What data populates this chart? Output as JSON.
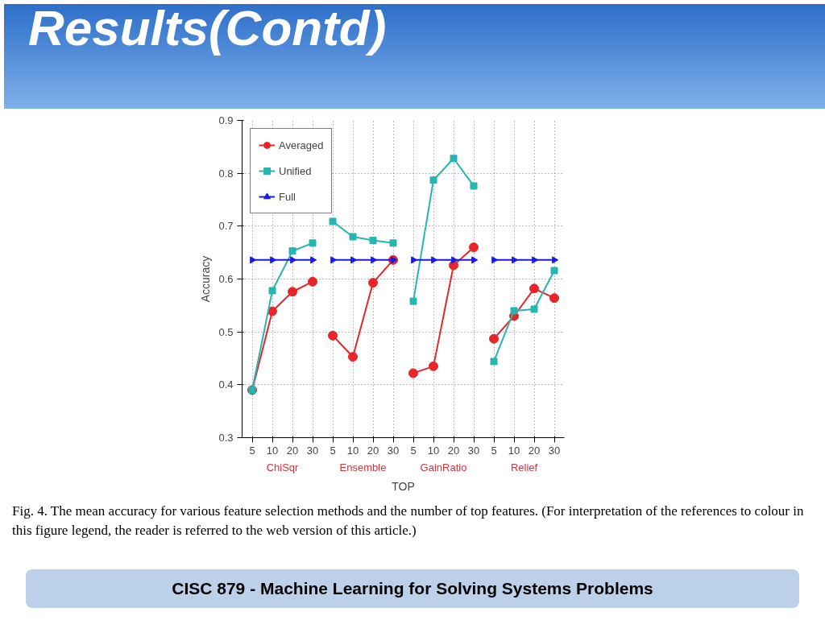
{
  "chart_data": {
    "type": "line",
    "title": "Results(Contd)",
    "xlabel": "TOP",
    "ylabel": "Accuracy",
    "annotations": [
      "ChiSqr",
      "Ensemble",
      "GainRatio",
      "Relief",
      "Fig. 4.  The mean accuracy for various feature selection methods and the number of top features. (For interpretation of the references to colour in this figure legend, the reader is referred to the web version of this article.)",
      "CISC 879 - Machine Learning for Solving Systems Problems"
    ],
    "categories": [
      "5",
      "10",
      "20",
      "30",
      "5",
      "10",
      "20",
      "30",
      "5",
      "10",
      "20",
      "30",
      "5",
      "10",
      "20",
      "30"
    ],
    "ylim": [
      0.3,
      0.9
    ],
    "yticks": [
      0.3,
      0.4,
      0.5,
      0.6,
      0.7,
      0.8,
      0.9
    ],
    "grid": true,
    "legend": "top left",
    "line_style": "solid",
    "series": [
      {
        "name": "Averaged",
        "color": "#e8262a",
        "marker": "circle",
        "values": [
          0.39,
          0.539,
          0.576,
          0.595,
          null,
          null,
          null,
          null,
          null,
          null,
          null,
          null,
          null,
          null,
          null,
          null
        ]
      },
      {
        "name": "Unified",
        "color": "#26b5b0",
        "marker": "square",
        "values": [
          0.39,
          0.578,
          0.653,
          0.668,
          null,
          null,
          null,
          null,
          null,
          null,
          null,
          null,
          null,
          null,
          null,
          null
        ]
      },
      {
        "name": "Full",
        "color": "#1a1ae6",
        "marker": "triangle",
        "values": [
          0.636,
          0.636,
          0.636,
          0.636,
          null,
          null,
          null,
          null,
          null,
          null,
          null,
          null,
          null,
          null,
          null,
          null
        ]
      },
      {
        "color": "#e8262a",
        "marker": "circle",
        "values": [
          null,
          null,
          null,
          null,
          0.493,
          0.453,
          0.593,
          0.636,
          null,
          null,
          null,
          null,
          null,
          null,
          null,
          null
        ]
      },
      {
        "color": "#26b5b0",
        "marker": "square",
        "values": [
          null,
          null,
          null,
          null,
          0.709,
          0.68,
          0.673,
          0.668,
          null,
          null,
          null,
          null,
          null,
          null,
          null,
          null
        ]
      },
      {
        "color": "#1a1ae6",
        "marker": "triangle",
        "values": [
          null,
          null,
          null,
          null,
          0.636,
          0.636,
          0.636,
          0.636,
          null,
          null,
          null,
          null,
          null,
          null,
          null,
          null
        ]
      },
      {
        "color": "#e8262a",
        "marker": "circle",
        "values": [
          null,
          null,
          null,
          null,
          null,
          null,
          null,
          null,
          0.422,
          0.435,
          0.626,
          0.66,
          null,
          null,
          null,
          null
        ]
      },
      {
        "color": "#26b5b0",
        "marker": "square",
        "values": [
          null,
          null,
          null,
          null,
          null,
          null,
          null,
          null,
          0.558,
          0.787,
          0.828,
          0.776,
          null,
          null,
          null,
          null
        ]
      },
      {
        "color": "#1a1ae6",
        "marker": "triangle",
        "values": [
          null,
          null,
          null,
          null,
          null,
          null,
          null,
          null,
          0.636,
          0.636,
          0.636,
          0.636,
          null,
          null,
          null,
          null
        ]
      },
      {
        "color": "#e8262a",
        "marker": "circle",
        "values": [
          null,
          null,
          null,
          null,
          null,
          null,
          null,
          null,
          null,
          null,
          null,
          null,
          0.487,
          0.53,
          0.582,
          0.564
        ]
      },
      {
        "color": "#26b5b0",
        "marker": "square",
        "values": [
          null,
          null,
          null,
          null,
          null,
          null,
          null,
          null,
          null,
          null,
          null,
          null,
          0.444,
          0.54,
          0.543,
          0.616
        ]
      },
      {
        "color": "#1a1ae6",
        "marker": "triangle",
        "values": [
          null,
          null,
          null,
          null,
          null,
          null,
          null,
          null,
          null,
          null,
          null,
          null,
          0.636,
          0.636,
          0.636,
          0.636
        ]
      }
    ]
  }
}
